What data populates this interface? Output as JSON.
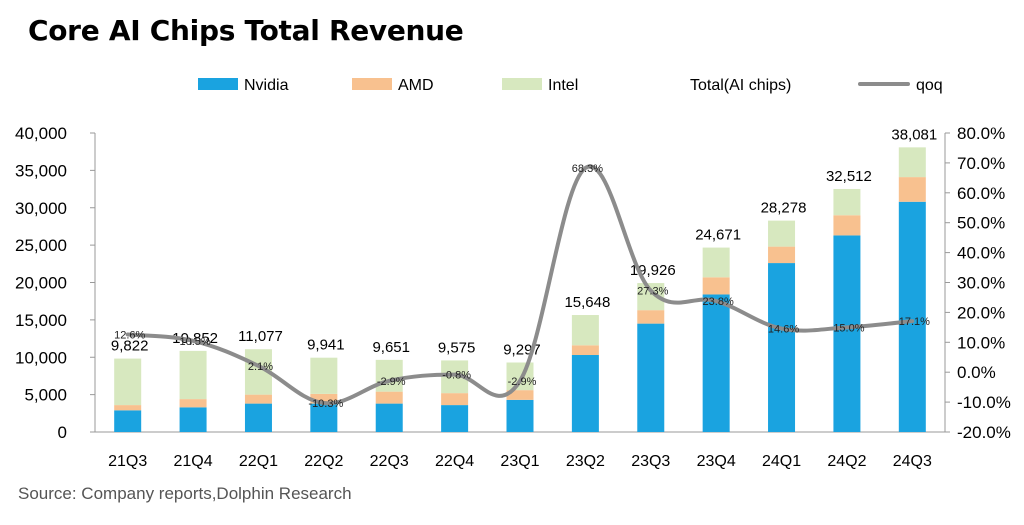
{
  "title": "Core AI Chips Total Revenue",
  "source": "Source: Company reports,Dolphin Research",
  "chart_data": {
    "type": "bar",
    "stacked": true,
    "categories": [
      "21Q3",
      "21Q4",
      "22Q1",
      "22Q2",
      "22Q3",
      "22Q4",
      "23Q1",
      "23Q2",
      "23Q3",
      "23Q4",
      "24Q1",
      "24Q2",
      "24Q3"
    ],
    "series": [
      {
        "name": "Nvidia",
        "color": "#1aa3e0",
        "values": [
          2900,
          3300,
          3800,
          3800,
          3800,
          3600,
          4300,
          10300,
          14500,
          18400,
          22600,
          26300,
          30800
        ]
      },
      {
        "name": "AMD",
        "color": "#f8c18f",
        "values": [
          700,
          1100,
          1200,
          1300,
          1600,
          1600,
          1300,
          1300,
          1800,
          2300,
          2200,
          2700,
          3300
        ]
      },
      {
        "name": "Intel",
        "color": "#d7e8bf",
        "values": [
          6222,
          6452,
          6077,
          4841,
          4251,
          4375,
          3697,
          4048,
          3626,
          3971,
          3478,
          3512,
          3981
        ]
      }
    ],
    "totals": {
      "name": "Total(AI chips)",
      "values": [
        9822,
        10852,
        11077,
        9941,
        9651,
        9575,
        9297,
        15648,
        19926,
        24671,
        28278,
        32512,
        38081
      ],
      "labels": [
        "9,822",
        "10,852",
        "11,077",
        "9,941",
        "9,651",
        "9,575",
        "9,297",
        "15,648",
        "19,926",
        "24,671",
        "28,278",
        "32,512",
        "38,081"
      ]
    },
    "qoq": {
      "name": "qoq",
      "color": "#8c8c8c",
      "values": [
        12.6,
        10.5,
        2.1,
        -10.3,
        -2.9,
        -0.8,
        -2.9,
        68.3,
        27.3,
        23.8,
        14.6,
        15.0,
        17.1
      ],
      "labels": [
        "12.6%",
        "10.5%",
        "2.1%",
        "-10.3%",
        "-2.9%",
        "-0.8%",
        "-2.9%",
        "68.3%",
        "27.3%",
        "23.8%",
        "14.6%",
        "15.0%",
        "17.1%"
      ]
    },
    "y_left": {
      "min": 0,
      "max": 40000,
      "ticks": [
        0,
        5000,
        10000,
        15000,
        20000,
        25000,
        30000,
        35000,
        40000
      ],
      "tick_labels": [
        "0",
        "5,000",
        "10,000",
        "15,000",
        "20,000",
        "25,000",
        "30,000",
        "35,000",
        "40,000"
      ]
    },
    "y_right": {
      "min": -20,
      "max": 80,
      "ticks": [
        -20,
        -10,
        0,
        10,
        20,
        30,
        40,
        50,
        60,
        70,
        80
      ],
      "tick_labels": [
        "-20.0%",
        "-10.0%",
        "0.0%",
        "10.0%",
        "20.0%",
        "30.0%",
        "40.0%",
        "50.0%",
        "60.0%",
        "70.0%",
        "80.0%"
      ]
    },
    "legend_placement": "top",
    "grid": false
  }
}
